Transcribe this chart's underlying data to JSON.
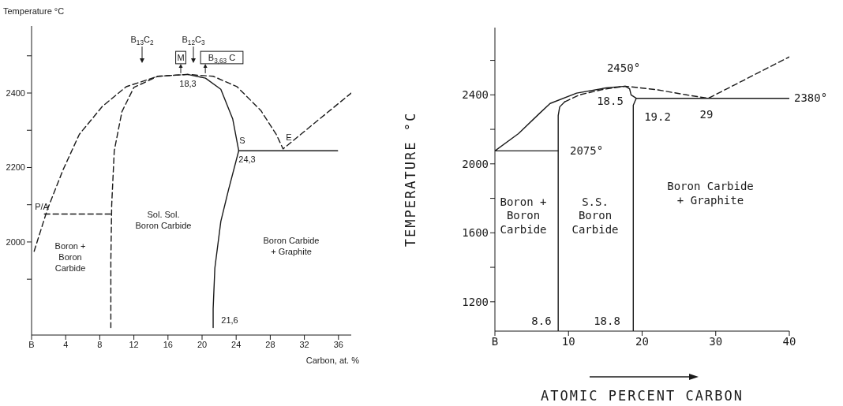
{
  "chart_data": [
    {
      "type": "line",
      "ylabel": "Temperature °C",
      "xlabel": "Carbon, at. %",
      "xlim": [
        0,
        37.5
      ],
      "xticks": [
        {
          "value": 0,
          "label": "B"
        },
        4,
        8,
        12,
        16,
        20,
        24,
        28,
        32,
        36
      ],
      "ylim": [
        1750,
        2580
      ],
      "yticks": [
        {
          "value": 1900,
          "label": null
        },
        2000,
        {
          "value": 2100,
          "label": null
        },
        2200,
        {
          "value": 2300,
          "label": null
        },
        2400,
        {
          "value": 2500,
          "label": null
        }
      ],
      "marker": "none",
      "series": [
        {
          "color": "#1a1a1a",
          "line_style": "dashed",
          "x": [
            0.3,
            1.85,
            3.7,
            5.6,
            8.3,
            11.1,
            14.8,
            18.3,
            21.3,
            24.1,
            26.9,
            28.7,
            29.5,
            37.5
          ],
          "values": [
            1975,
            2087,
            2194,
            2289,
            2364,
            2417,
            2445,
            2450,
            2445,
            2417,
            2353,
            2289,
            2250,
            2400
          ]
        },
        {
          "color": "#1a1a1a",
          "line_style": "solid",
          "x": [
            24.3,
            35.9
          ],
          "values": [
            2245,
            2245
          ]
        },
        {
          "color": "#1a1a1a",
          "line_style": "solid",
          "x": [
            18.3,
            20.4,
            22.2,
            23.6,
            24.3,
            23.1,
            22.2,
            21.5,
            21.3,
            21.3
          ],
          "values": [
            2450,
            2440,
            2410,
            2330,
            2245,
            2140,
            2055,
            1930,
            1820,
            1770
          ]
        },
        {
          "color": "#1a1a1a",
          "line_style": "dashed",
          "x": [
            18.3,
            14.8,
            12.0,
            10.6,
            9.7,
            9.4,
            9.3,
            9.3
          ],
          "values": [
            2450,
            2445,
            2415,
            2350,
            2245,
            2100,
            1950,
            1770
          ]
        },
        {
          "color": "#1a1a1a",
          "line_style": "dashed",
          "x": [
            1.5,
            9.3
          ],
          "values": [
            2075,
            2075
          ]
        }
      ],
      "annotations": [
        "B$_{13}$C$_{2}$",
        "B$_{12}$C$_{3}$",
        "M",
        "B$_{3,63}$ C",
        "18,3",
        "S",
        "24,3",
        "E",
        "P/A",
        "21,6",
        "Sol. Sol.\nBoron Carbide",
        "Boron +\nBoron\nCarbide",
        "Boron Carbide\n+ Graphite"
      ]
    },
    {
      "type": "line",
      "ylabel": "TEMPERATURE °C",
      "xlabel": "ATOMIC PERCENT CARBON",
      "xlim": [
        0,
        40
      ],
      "xticks": [
        {
          "value": 0,
          "label": "B"
        },
        10,
        20,
        30,
        40
      ],
      "ylim": [
        1030,
        2790
      ],
      "yticks": [
        1200,
        {
          "value": 1400,
          "label": null
        },
        1600,
        {
          "value": 1800,
          "label": null
        },
        2000,
        {
          "value": 2200,
          "label": null
        },
        2400,
        {
          "value": 2600,
          "label": null
        }
      ],
      "marker": "none",
      "series": [
        {
          "color": "#1a1a1a",
          "line_style": "solid",
          "x": [
            8.6,
            0,
            3.2,
            6.0,
            7.5,
            11.1,
            15.1,
            17.7,
            18.3,
            18.5,
            19.2,
            18.8,
            18.8
          ],
          "values": [
            2075,
            2075,
            2175,
            2290,
            2350,
            2410,
            2440,
            2450,
            2435,
            2400,
            2380,
            2340,
            1030
          ]
        },
        {
          "color": "#1a1a1a",
          "line_style": "solid",
          "x": [
            8.6,
            8.6,
            8.8,
            9.5
          ],
          "values": [
            1030,
            2280,
            2330,
            2360
          ]
        },
        {
          "color": "#1a1a1a",
          "line_style": "dashed",
          "x": [
            9.5,
            11.5,
            14.5,
            17.7,
            22,
            26,
            29,
            40
          ],
          "values": [
            2360,
            2400,
            2430,
            2450,
            2430,
            2400,
            2380,
            2620
          ]
        },
        {
          "color": "#1a1a1a",
          "line_style": "solid",
          "x": [
            19.2,
            40
          ],
          "values": [
            2380,
            2380
          ]
        }
      ],
      "annotations": [
        "2450°",
        "18.5",
        "19.2",
        "29",
        "2380°",
        "2075°",
        "8.6",
        "18.8",
        "Boron +\nBoron\nCarbide",
        "S.S.\nBoron\nCarbide",
        "Boron Carbide\n+ Graphite"
      ]
    }
  ]
}
